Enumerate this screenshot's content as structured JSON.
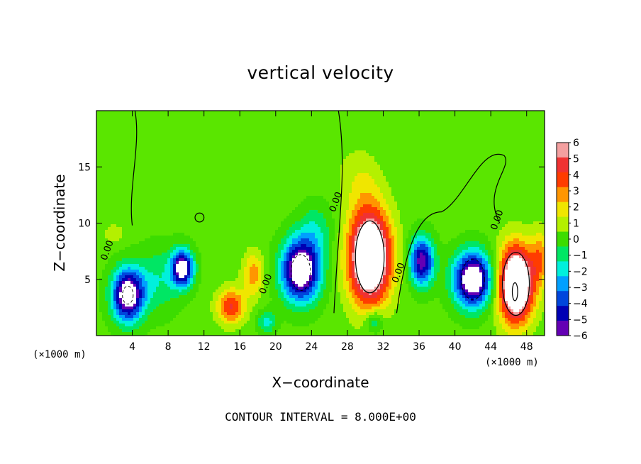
{
  "title": "vertical velocity",
  "footer": "CONTOUR INTERVAL = 8.000E+00",
  "chart_data": {
    "type": "heatmap",
    "title": "vertical velocity",
    "xlabel": "X−coordinate",
    "ylabel": "Z−coordinate",
    "x_unit_label": "(×1000 m)",
    "y_unit_label": "(×1000 m)",
    "xlim": [
      0,
      50
    ],
    "ylim": [
      0,
      20
    ],
    "x_ticks": [
      "4",
      "8",
      "12",
      "16",
      "20",
      "24",
      "28",
      "32",
      "36",
      "40",
      "44",
      "48"
    ],
    "y_ticks": [
      "5",
      "10",
      "15"
    ],
    "colorbar": {
      "labels": [
        "6",
        "5",
        "4",
        "3",
        "2",
        "1",
        "0",
        "−1",
        "−2",
        "−3",
        "−4",
        "−5",
        "−6"
      ],
      "colors": [
        "#f4a0a0",
        "#f03232",
        "#ff3c00",
        "#ff9600",
        "#f0e600",
        "#b4f000",
        "#3cdc00",
        "#00e664",
        "#00f0dc",
        "#00a0ff",
        "#0046dc",
        "#0000b4",
        "#6400b4"
      ]
    },
    "contour_labels": [
      {
        "text": "0.00",
        "x": 1.5,
        "z": 7.5
      },
      {
        "text": "0.00",
        "x": 19.2,
        "z": 4.5
      },
      {
        "text": "0.00",
        "x": 27.0,
        "z": 11.8
      },
      {
        "text": "0.00",
        "x": 34.0,
        "z": 5.5
      },
      {
        "text": "0.00",
        "x": 45.0,
        "z": 10.2
      }
    ],
    "features": [
      {
        "kind": "downdraft",
        "x": 3.5,
        "z": 3.5,
        "peak": -7
      },
      {
        "kind": "downdraft",
        "x": 9.5,
        "z": 6.0,
        "peak": -7
      },
      {
        "kind": "updraft",
        "x": 15.0,
        "z": 2.5,
        "peak": 4
      },
      {
        "kind": "updraft",
        "x": 17.5,
        "z": 5.5,
        "peak": 3
      },
      {
        "kind": "downdraft",
        "x": 23.0,
        "z": 5.5,
        "peak": -8
      },
      {
        "kind": "updraft",
        "x": 30.5,
        "z": 6.5,
        "peak": 9
      },
      {
        "kind": "downdraft",
        "x": 36.5,
        "z": 6.5,
        "peak": -6
      },
      {
        "kind": "downdraft",
        "x": 42.0,
        "z": 5.0,
        "peak": -8
      },
      {
        "kind": "updraft",
        "x": 46.5,
        "z": 4.5,
        "peak": 9
      }
    ]
  }
}
